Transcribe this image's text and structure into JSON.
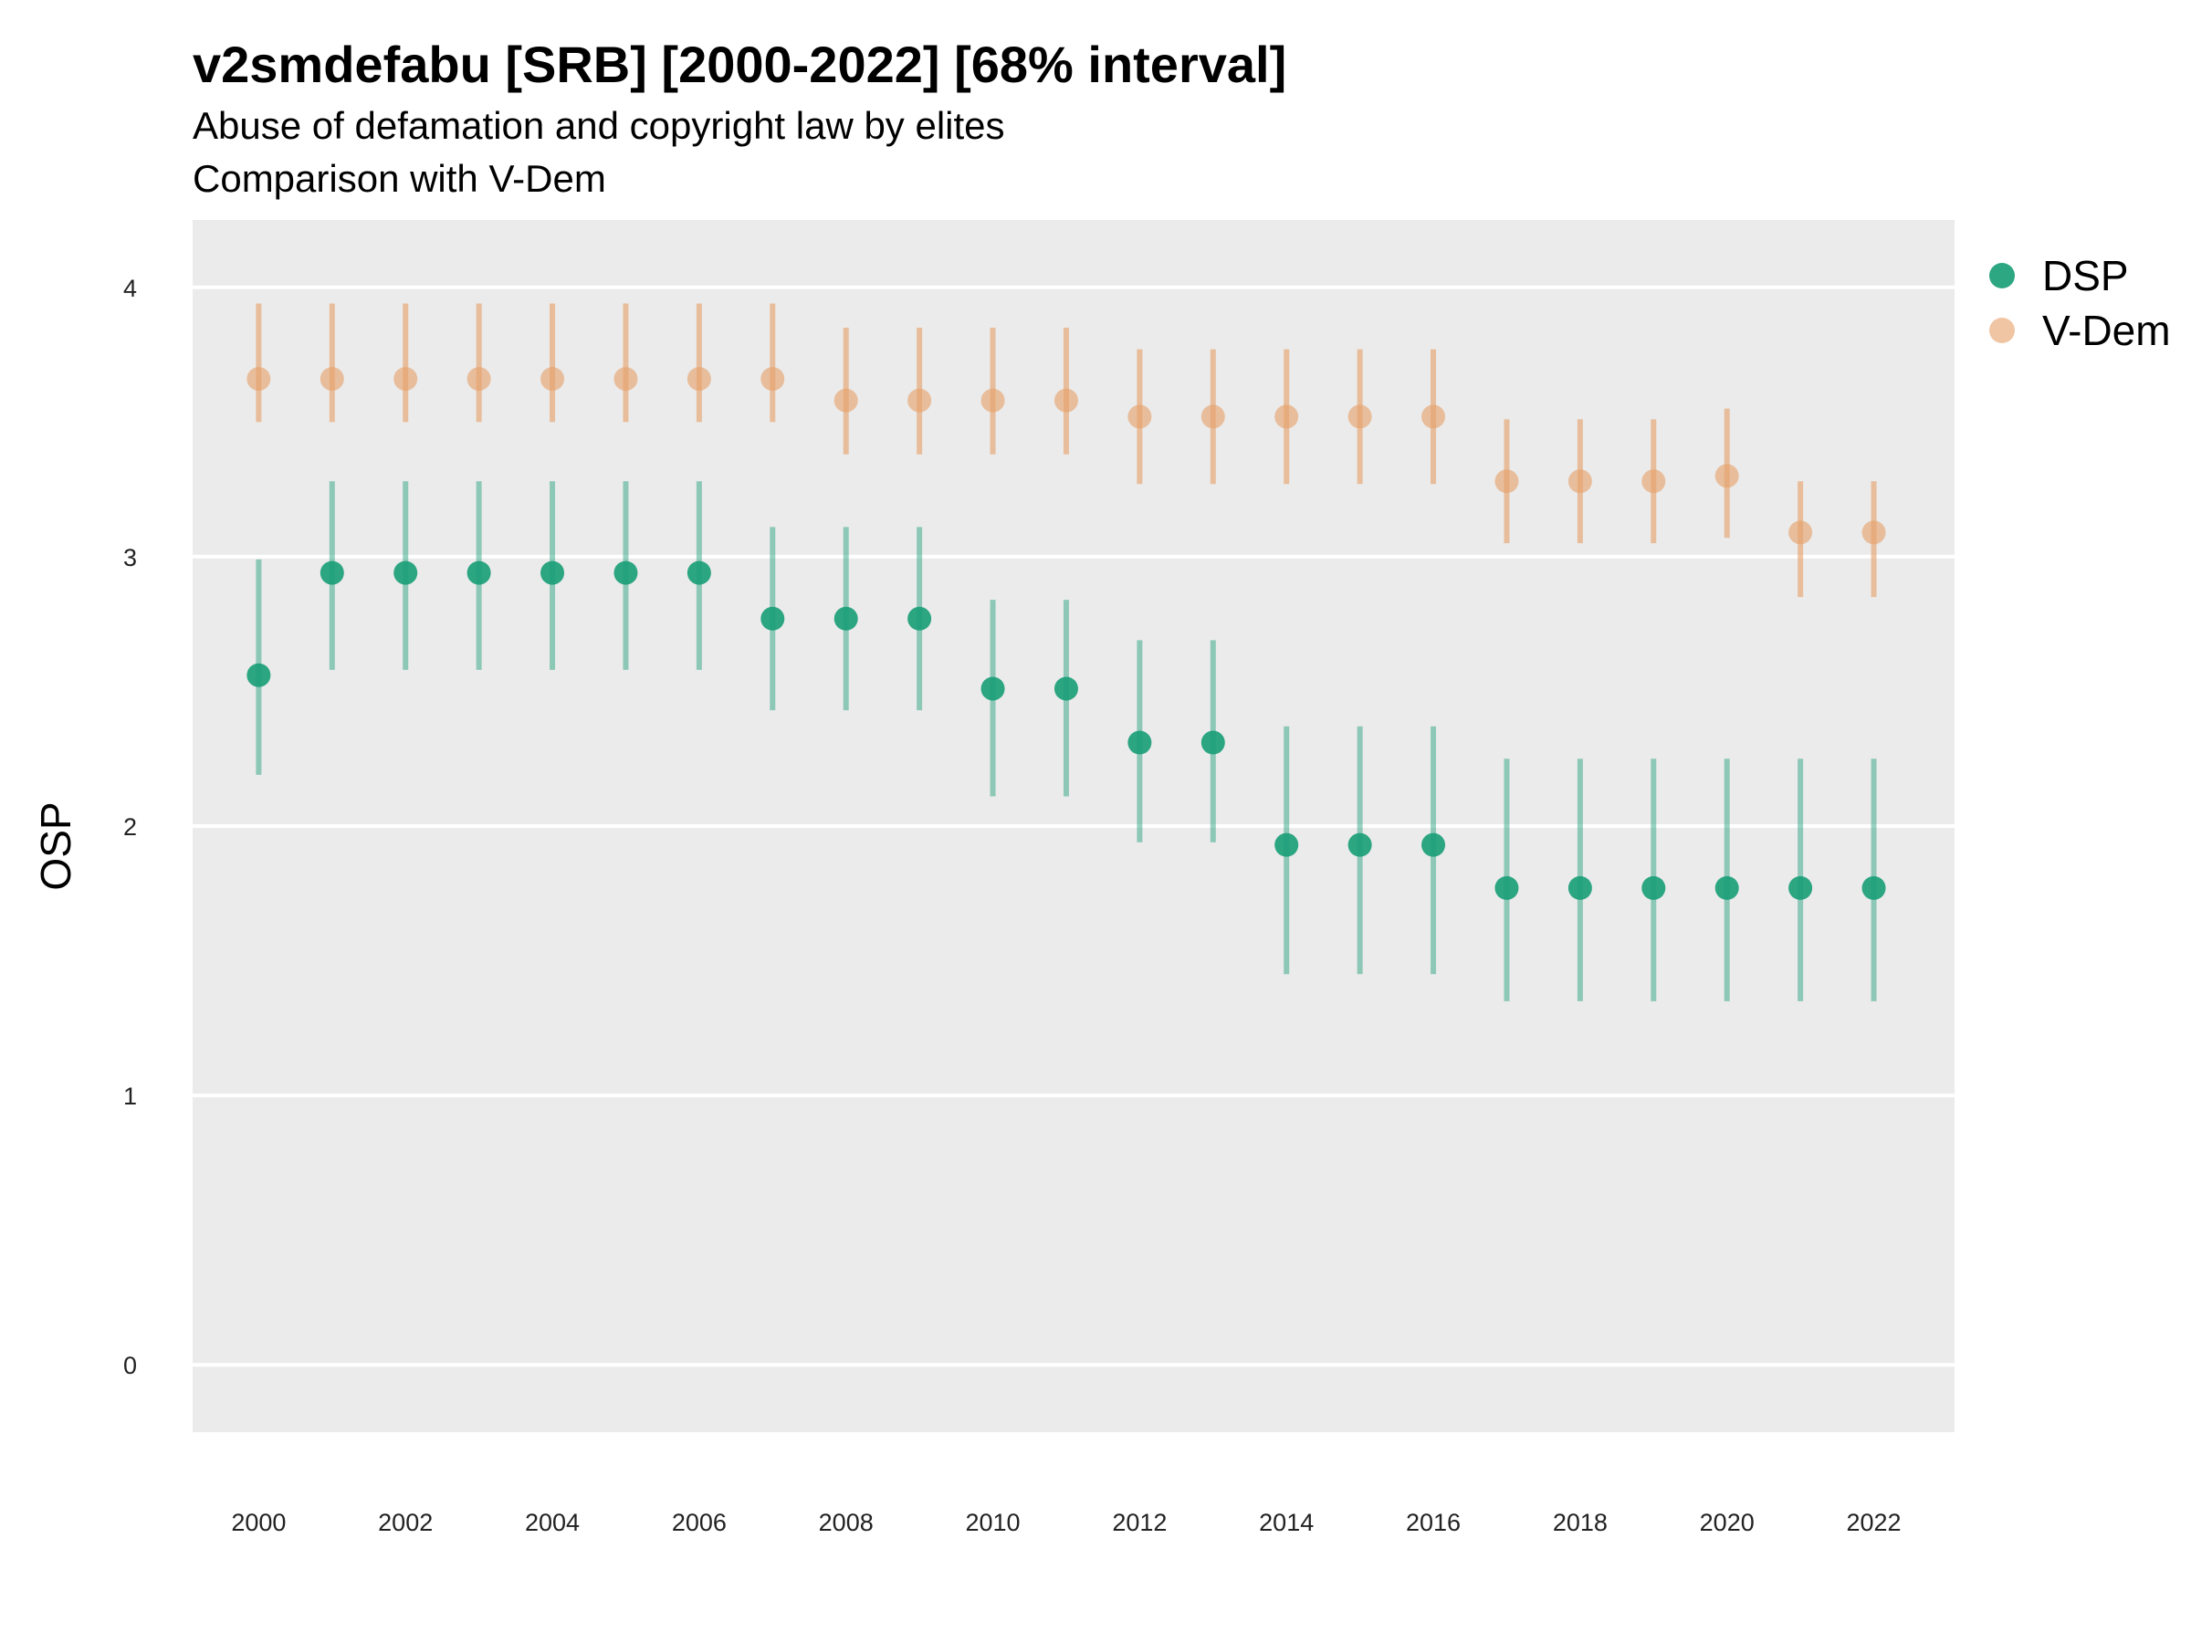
{
  "chart_data": {
    "type": "scatter",
    "title": "v2smdefabu [SRB] [2000-2022] [68% interval]",
    "subtitle_lines": [
      "Abuse of defamation and copyright law by elites",
      "Comparison with V-Dem"
    ],
    "ylabel": "OSP",
    "xlabel": "",
    "ylim": [
      -0.25,
      4.25
    ],
    "yticks": [
      0,
      1,
      2,
      3,
      4
    ],
    "xlim": [
      1999.1,
      2023.1
    ],
    "xticks": [
      2000,
      2002,
      2004,
      2006,
      2008,
      2010,
      2012,
      2014,
      2016,
      2018,
      2020,
      2022
    ],
    "grid": true,
    "legend_position": "right",
    "x": [
      2000,
      2001,
      2002,
      2003,
      2004,
      2005,
      2006,
      2007,
      2008,
      2009,
      2010,
      2011,
      2012,
      2013,
      2014,
      2015,
      2016,
      2017,
      2018,
      2019,
      2020,
      2021,
      2022
    ],
    "series": [
      {
        "name": "DSP",
        "color": "#1b9e77",
        "values": [
          2.56,
          2.94,
          2.94,
          2.94,
          2.94,
          2.94,
          2.94,
          2.77,
          2.77,
          2.77,
          2.51,
          2.51,
          2.31,
          2.31,
          1.93,
          1.93,
          1.93,
          1.77,
          1.77,
          1.77,
          1.77,
          1.77,
          1.77
        ],
        "lower": [
          2.19,
          2.58,
          2.58,
          2.58,
          2.58,
          2.58,
          2.58,
          2.43,
          2.43,
          2.43,
          2.11,
          2.11,
          1.94,
          1.94,
          1.45,
          1.45,
          1.45,
          1.35,
          1.35,
          1.35,
          1.35,
          1.35,
          1.35
        ],
        "upper": [
          2.99,
          3.28,
          3.28,
          3.28,
          3.28,
          3.28,
          3.28,
          3.11,
          3.11,
          3.11,
          2.84,
          2.84,
          2.69,
          2.69,
          2.37,
          2.37,
          2.37,
          2.25,
          2.25,
          2.25,
          2.25,
          2.25,
          2.25
        ]
      },
      {
        "name": "V-Dem",
        "color": "#e6a26a",
        "values": [
          3.66,
          3.66,
          3.66,
          3.66,
          3.66,
          3.66,
          3.66,
          3.66,
          3.58,
          3.58,
          3.58,
          3.58,
          3.52,
          3.52,
          3.52,
          3.52,
          3.52,
          3.28,
          3.28,
          3.28,
          3.3,
          3.09,
          3.09
        ],
        "lower": [
          3.5,
          3.5,
          3.5,
          3.5,
          3.5,
          3.5,
          3.5,
          3.5,
          3.38,
          3.38,
          3.38,
          3.38,
          3.27,
          3.27,
          3.27,
          3.27,
          3.27,
          3.05,
          3.05,
          3.05,
          3.07,
          2.85,
          2.85
        ],
        "upper": [
          3.94,
          3.94,
          3.94,
          3.94,
          3.94,
          3.94,
          3.94,
          3.94,
          3.85,
          3.85,
          3.85,
          3.85,
          3.77,
          3.77,
          3.77,
          3.77,
          3.77,
          3.51,
          3.51,
          3.51,
          3.55,
          3.28,
          3.28
        ]
      }
    ]
  }
}
